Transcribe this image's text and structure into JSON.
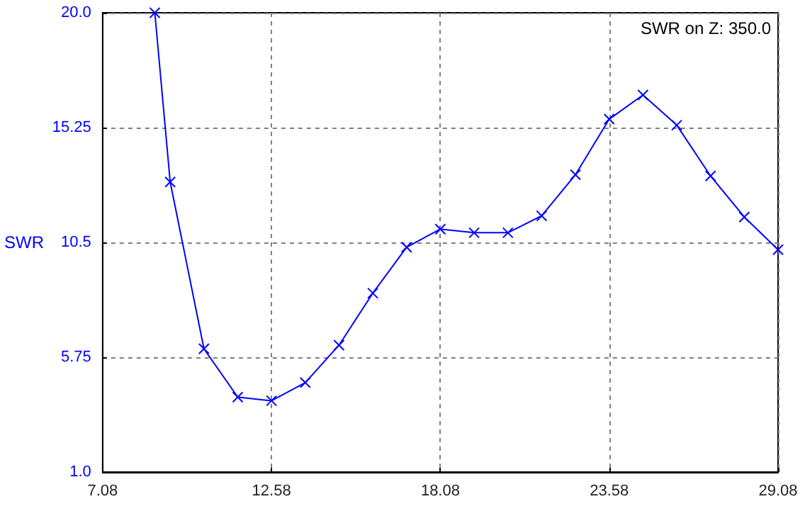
{
  "chart_data": {
    "type": "line",
    "ylabel": "SWR",
    "annotations": [
      "SWR on Z: 350.0"
    ],
    "x": [
      8.78,
      9.28,
      10.38,
      11.48,
      12.58,
      13.68,
      14.78,
      15.88,
      16.98,
      18.08,
      19.18,
      20.28,
      21.38,
      22.48,
      23.58,
      24.68,
      25.78,
      26.88,
      27.98,
      29.08
    ],
    "series": [
      {
        "color": "#0000ff",
        "values": [
          20.0,
          13.0,
          6.1,
          4.1,
          3.95,
          4.7,
          6.25,
          8.4,
          10.3,
          11.05,
          10.9,
          10.9,
          11.6,
          13.3,
          15.6,
          16.6,
          15.35,
          13.25,
          11.55,
          10.2
        ]
      }
    ],
    "xlim": [
      7.08,
      29.08
    ],
    "xticks": [
      7.08,
      12.58,
      18.08,
      23.58,
      29.08
    ],
    "ylim": [
      1,
      20
    ],
    "yticks": [
      {
        "value": 1,
        "label": "1.0"
      },
      5.75,
      10.5,
      15.25,
      {
        "value": 20,
        "label": "20.0"
      }
    ],
    "grid": true,
    "marker": "cross",
    "line_style": "solid"
  }
}
